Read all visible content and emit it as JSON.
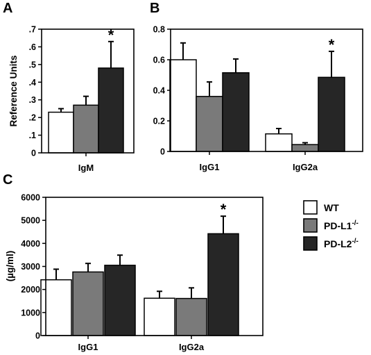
{
  "legend": {
    "items": [
      {
        "label": "WT",
        "sup": "",
        "color": "#ffffff"
      },
      {
        "label": "PD-L1",
        "sup": "-/-",
        "color": "#7a7a7a"
      },
      {
        "label": "PD-L2",
        "sup": "-/-",
        "color": "#262626"
      }
    ]
  },
  "chart_data": [
    {
      "panel": "A",
      "type": "bar",
      "title": "",
      "ylabel": "Reference Units",
      "xlabel": "",
      "ylim": [
        0,
        0.7
      ],
      "yticks": [
        0,
        0.1,
        0.2,
        0.3,
        0.4,
        0.5,
        0.6,
        0.7
      ],
      "ytick_labels": [
        "0",
        ".1",
        ".2",
        ".3",
        ".4",
        ".5",
        ".6",
        ".7"
      ],
      "categories": [
        "IgM"
      ],
      "series": [
        {
          "name": "WT",
          "values": [
            0.23
          ],
          "errors": [
            0.02
          ]
        },
        {
          "name": "PD-L1-/-",
          "values": [
            0.27
          ],
          "errors": [
            0.05
          ]
        },
        {
          "name": "PD-L2-/-",
          "values": [
            0.48
          ],
          "errors": [
            0.15
          ]
        }
      ],
      "annotations": [
        {
          "category": 0,
          "series": 2,
          "text": "*"
        }
      ]
    },
    {
      "panel": "B",
      "type": "bar",
      "title": "",
      "ylabel": "",
      "xlabel": "",
      "ylim": [
        0,
        0.8
      ],
      "yticks": [
        0,
        0.2,
        0.4,
        0.6,
        0.8
      ],
      "ytick_labels": [
        "0",
        "0.2",
        "0.4",
        "0.6",
        "0.8"
      ],
      "categories": [
        "IgG1",
        "IgG2a"
      ],
      "series": [
        {
          "name": "WT",
          "values": [
            0.6,
            0.115
          ],
          "errors": [
            0.11,
            0.035
          ]
        },
        {
          "name": "PD-L1-/-",
          "values": [
            0.36,
            0.045
          ],
          "errors": [
            0.095,
            0.012
          ]
        },
        {
          "name": "PD-L2-/-",
          "values": [
            0.515,
            0.485
          ],
          "errors": [
            0.09,
            0.17
          ]
        }
      ],
      "annotations": [
        {
          "category": 1,
          "series": 2,
          "text": "*"
        }
      ]
    },
    {
      "panel": "C",
      "type": "bar",
      "title": "",
      "ylabel": "(µg/ml)",
      "xlabel": "",
      "ylim": [
        0,
        6000
      ],
      "yticks": [
        0,
        1000,
        2000,
        3000,
        4000,
        5000,
        6000
      ],
      "ytick_labels": [
        "0",
        "1000",
        "2000",
        "3000",
        "4000",
        "5000",
        "6000"
      ],
      "categories": [
        "IgG1",
        "IgG2a"
      ],
      "series": [
        {
          "name": "WT",
          "values": [
            2420,
            1620
          ],
          "errors": [
            460,
            300
          ]
        },
        {
          "name": "PD-L1-/-",
          "values": [
            2760,
            1610
          ],
          "errors": [
            370,
            460
          ]
        },
        {
          "name": "PD-L2-/-",
          "values": [
            3050,
            4420
          ],
          "errors": [
            440,
            760
          ]
        }
      ],
      "annotations": [
        {
          "category": 1,
          "series": 2,
          "text": "*"
        }
      ]
    }
  ]
}
